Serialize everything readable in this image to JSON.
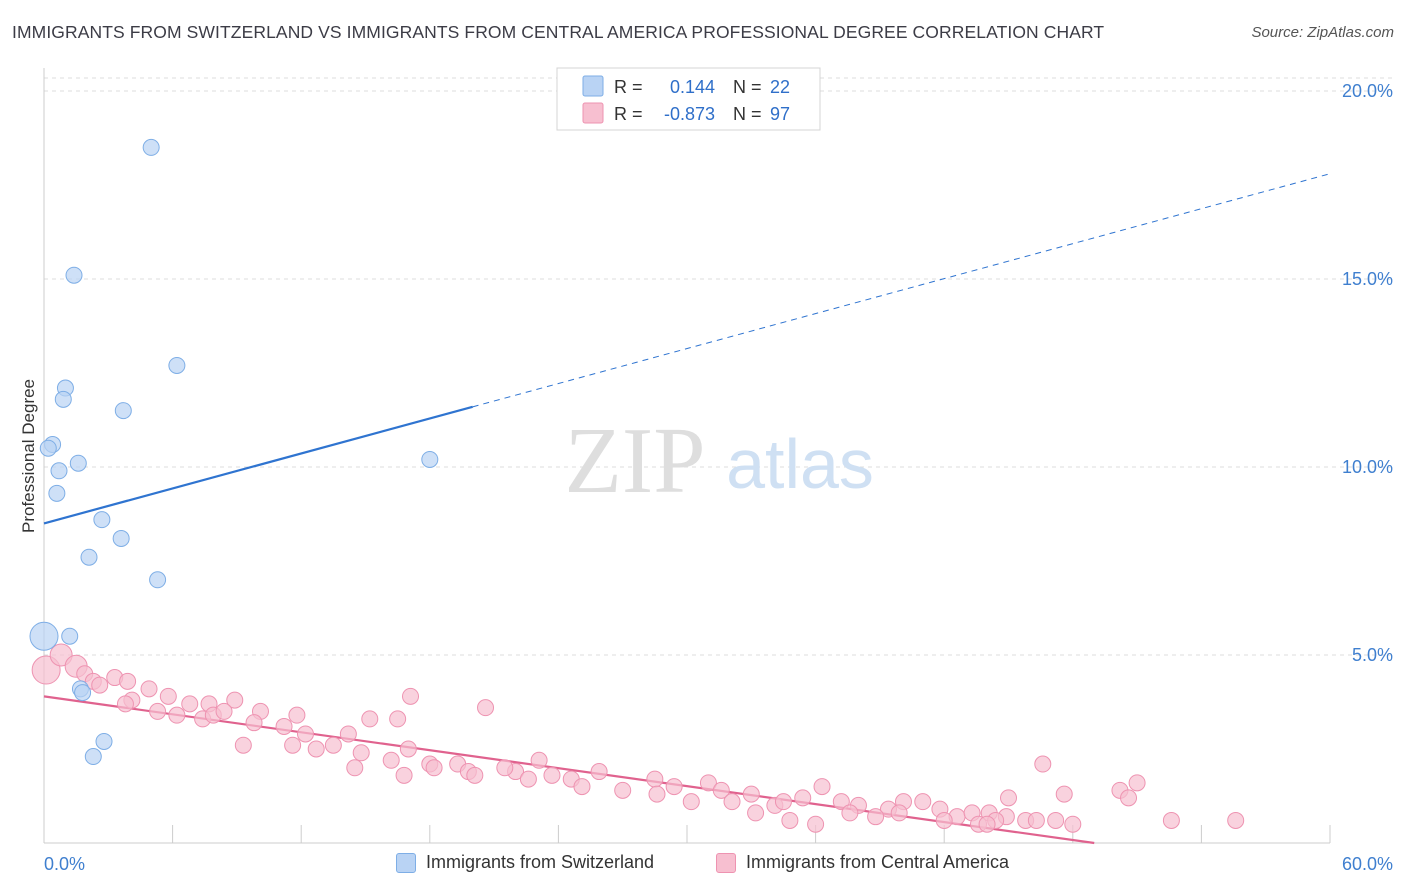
{
  "title": "IMMIGRANTS FROM SWITZERLAND VS IMMIGRANTS FROM CENTRAL AMERICA PROFESSIONAL DEGREE CORRELATION CHART",
  "source": "Source: ZipAtlas.com",
  "watermark": {
    "zip": "ZIP",
    "atlas": "atlas"
  },
  "colors": {
    "blue_fill": "#b9d3f4",
    "blue_stroke": "#7eaee6",
    "blue_line": "#2f74d0",
    "pink_fill": "#f7bfd0",
    "pink_stroke": "#ee93b1",
    "pink_line": "#e0628e",
    "tick_label": "#3f7fcf",
    "grid": "#dddddd"
  },
  "legend_top": [
    {
      "r_label": "R =",
      "r_value": "0.144",
      "n_label": "N =",
      "n_value": "22"
    },
    {
      "r_label": "R =",
      "r_value": "-0.873",
      "n_label": "N =",
      "n_value": "97"
    }
  ],
  "legend_bottom": [
    {
      "label": "Immigrants from Switzerland"
    },
    {
      "label": "Immigrants from Central America"
    }
  ],
  "chart_data": {
    "type": "scatter",
    "title": "IMMIGRANTS FROM SWITZERLAND VS IMMIGRANTS FROM CENTRAL AMERICA PROFESSIONAL DEGREE CORRELATION CHART",
    "xlabel": "",
    "ylabel": "Professional Degree",
    "xlim": [
      0,
      60
    ],
    "ylim": [
      0,
      20.8
    ],
    "x_tick_labels": [
      "0.0%",
      "60.0%"
    ],
    "y_ticks": [
      5,
      10,
      15,
      20
    ],
    "y_tick_labels": [
      "5.0%",
      "10.0%",
      "15.0%",
      "20.0%"
    ],
    "grid": true,
    "legend_position": "top-center",
    "series": [
      {
        "name": "Immigrants from Switzerland",
        "r": 0.144,
        "n": 22,
        "trend": {
          "x0": 0,
          "y0": 8.5,
          "x1": 20,
          "y1": 11.6,
          "dashed_to_x": 60,
          "dashed_to_y": 17.8
        },
        "points": [
          [
            5.0,
            18.5
          ],
          [
            1.4,
            15.1
          ],
          [
            6.2,
            12.7
          ],
          [
            1.0,
            12.1
          ],
          [
            0.9,
            11.8
          ],
          [
            3.7,
            11.5
          ],
          [
            0.4,
            10.6
          ],
          [
            0.2,
            10.5
          ],
          [
            1.6,
            10.1
          ],
          [
            18.0,
            10.2
          ],
          [
            0.7,
            9.9
          ],
          [
            0.6,
            9.3
          ],
          [
            2.7,
            8.6
          ],
          [
            3.6,
            8.1
          ],
          [
            2.1,
            7.6
          ],
          [
            5.3,
            7.0
          ],
          [
            0.0,
            5.5
          ],
          [
            1.2,
            5.5
          ],
          [
            1.7,
            4.1
          ],
          [
            1.8,
            4.0
          ],
          [
            2.8,
            2.7
          ],
          [
            2.3,
            2.3
          ]
        ]
      },
      {
        "name": "Immigrants from Central America",
        "r": -0.873,
        "n": 97,
        "trend": {
          "x0": 0,
          "y0": 3.9,
          "x1": 49,
          "y1": 0.0
        },
        "points": [
          [
            0.1,
            4.6
          ],
          [
            0.8,
            5.0
          ],
          [
            1.5,
            4.7
          ],
          [
            1.9,
            4.5
          ],
          [
            2.3,
            4.3
          ],
          [
            3.3,
            4.4
          ],
          [
            2.6,
            4.2
          ],
          [
            3.9,
            4.3
          ],
          [
            4.1,
            3.8
          ],
          [
            4.9,
            4.1
          ],
          [
            3.8,
            3.7
          ],
          [
            5.8,
            3.9
          ],
          [
            5.3,
            3.5
          ],
          [
            6.8,
            3.7
          ],
          [
            7.7,
            3.7
          ],
          [
            8.9,
            3.8
          ],
          [
            6.2,
            3.4
          ],
          [
            7.4,
            3.3
          ],
          [
            7.9,
            3.4
          ],
          [
            8.4,
            3.5
          ],
          [
            10.1,
            3.5
          ],
          [
            11.8,
            3.4
          ],
          [
            17.1,
            3.9
          ],
          [
            20.6,
            3.6
          ],
          [
            9.3,
            2.6
          ],
          [
            9.8,
            3.2
          ],
          [
            11.2,
            3.1
          ],
          [
            11.6,
            2.6
          ],
          [
            12.2,
            2.9
          ],
          [
            12.7,
            2.5
          ],
          [
            13.5,
            2.6
          ],
          [
            14.2,
            2.9
          ],
          [
            15.2,
            3.3
          ],
          [
            14.8,
            2.4
          ],
          [
            16.5,
            3.3
          ],
          [
            17.0,
            2.5
          ],
          [
            16.2,
            2.2
          ],
          [
            14.5,
            2.0
          ],
          [
            16.8,
            1.8
          ],
          [
            18.0,
            2.1
          ],
          [
            18.2,
            2.0
          ],
          [
            19.3,
            2.1
          ],
          [
            19.8,
            1.9
          ],
          [
            20.1,
            1.8
          ],
          [
            22.0,
            1.9
          ],
          [
            23.1,
            2.2
          ],
          [
            21.5,
            2.0
          ],
          [
            22.6,
            1.7
          ],
          [
            23.7,
            1.8
          ],
          [
            24.6,
            1.7
          ],
          [
            25.9,
            1.9
          ],
          [
            25.1,
            1.5
          ],
          [
            27.0,
            1.4
          ],
          [
            28.5,
            1.7
          ],
          [
            29.4,
            1.5
          ],
          [
            31.0,
            1.6
          ],
          [
            31.6,
            1.4
          ],
          [
            33.0,
            1.3
          ],
          [
            32.1,
            1.1
          ],
          [
            34.1,
            1.0
          ],
          [
            34.5,
            1.1
          ],
          [
            35.4,
            1.2
          ],
          [
            36.3,
            1.5
          ],
          [
            37.2,
            1.1
          ],
          [
            38.0,
            1.0
          ],
          [
            39.4,
            0.9
          ],
          [
            40.1,
            1.1
          ],
          [
            41.0,
            1.1
          ],
          [
            41.8,
            0.9
          ],
          [
            42.6,
            0.7
          ],
          [
            43.3,
            0.8
          ],
          [
            44.1,
            0.8
          ],
          [
            44.9,
            0.7
          ],
          [
            45.8,
            0.6
          ],
          [
            46.3,
            0.6
          ],
          [
            47.2,
            0.6
          ],
          [
            48.0,
            0.5
          ],
          [
            45.0,
            1.2
          ],
          [
            47.6,
            1.3
          ],
          [
            50.2,
            1.4
          ],
          [
            51.0,
            1.6
          ],
          [
            52.6,
            0.6
          ],
          [
            55.6,
            0.6
          ],
          [
            50.6,
            1.2
          ],
          [
            46.6,
            2.1
          ],
          [
            37.6,
            0.8
          ],
          [
            38.8,
            0.7
          ],
          [
            39.9,
            0.8
          ],
          [
            42.0,
            0.6
          ],
          [
            43.6,
            0.5
          ],
          [
            44.4,
            0.6
          ],
          [
            36.0,
            0.5
          ],
          [
            34.8,
            0.6
          ],
          [
            33.2,
            0.8
          ],
          [
            30.2,
            1.1
          ],
          [
            28.6,
            1.3
          ],
          [
            44.0,
            0.5
          ]
        ]
      }
    ]
  }
}
